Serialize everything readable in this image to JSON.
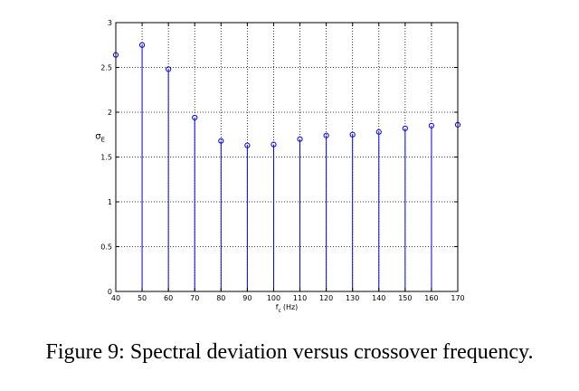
{
  "caption": "Figure 9: Spectral deviation versus crossover frequency.",
  "colors": {
    "stem": "#0000ff",
    "axis": "#000000",
    "grid": "#000000"
  },
  "chart_data": {
    "type": "stem",
    "title": "",
    "xlabel_main": "f",
    "xlabel_sub": "c",
    "xlabel_unit": "(Hz)",
    "ylabel_main": "σ",
    "ylabel_sub": "E",
    "xlim": [
      40,
      170
    ],
    "ylim": [
      0,
      3
    ],
    "grid": true,
    "xticks": [
      40,
      50,
      60,
      70,
      80,
      90,
      100,
      110,
      120,
      130,
      140,
      150,
      160,
      170
    ],
    "yticks": [
      0,
      0.5,
      1,
      1.5,
      2,
      2.5,
      3
    ],
    "ytick_labels": [
      "0",
      "0.5",
      "1",
      "1.5",
      "2",
      "2.5",
      "3"
    ],
    "x": [
      40,
      50,
      60,
      70,
      80,
      90,
      100,
      110,
      120,
      130,
      140,
      150,
      160,
      170
    ],
    "y": [
      2.64,
      2.75,
      2.48,
      1.94,
      1.68,
      1.63,
      1.64,
      1.7,
      1.74,
      1.75,
      1.78,
      1.82,
      1.85,
      1.86
    ]
  }
}
